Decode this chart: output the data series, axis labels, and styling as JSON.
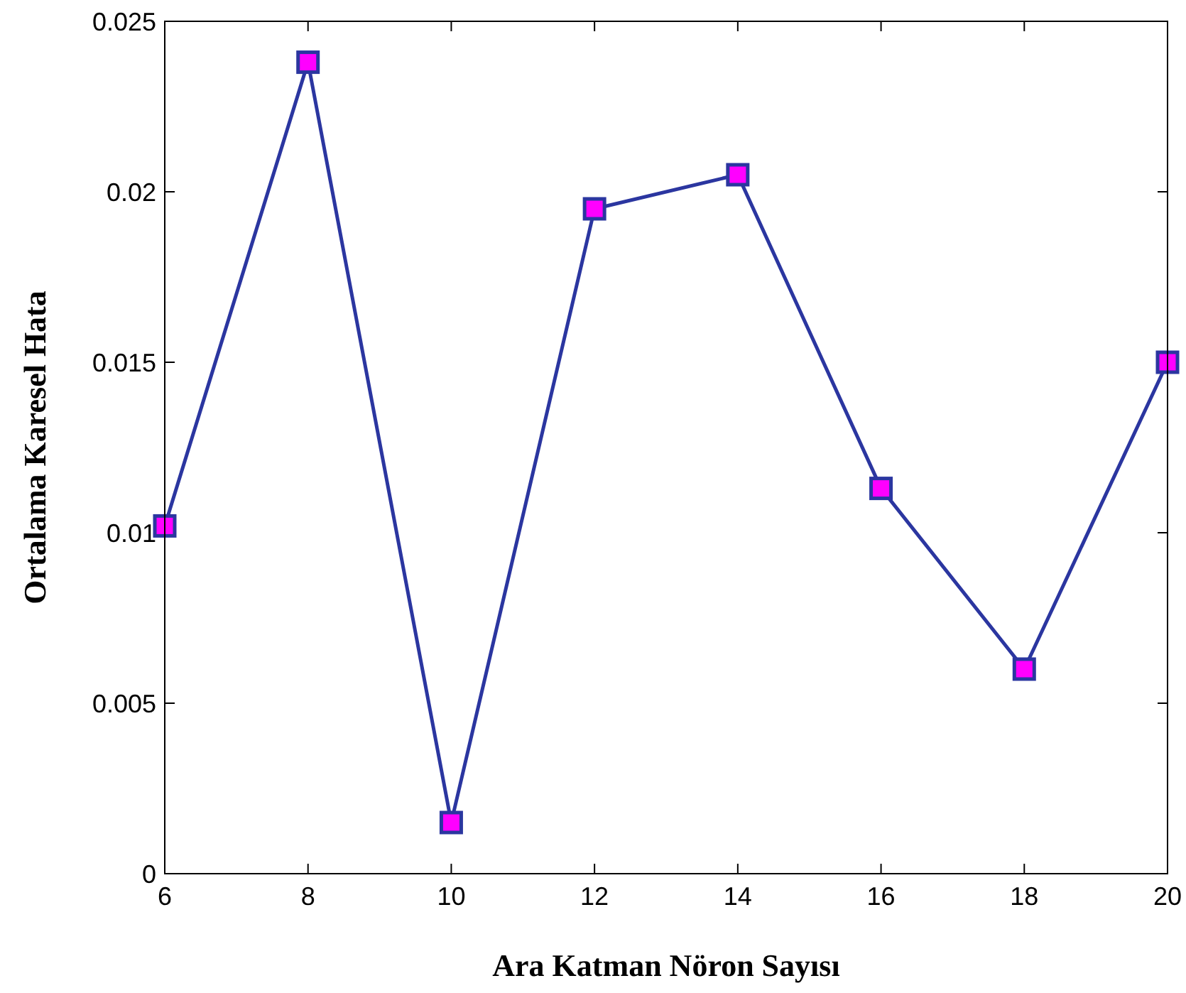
{
  "chart_data": {
    "type": "line",
    "xlabel": "Ara Katman Nöron Sayısı",
    "ylabel": "Ortalama Karesel Hata",
    "x": [
      6,
      8,
      10,
      12,
      14,
      16,
      18,
      20
    ],
    "series": [
      {
        "color": "#2b36a0",
        "values": [
          0.0102,
          0.0238,
          0.0015,
          0.0195,
          0.0205,
          0.0113,
          0.006,
          0.015
        ]
      }
    ],
    "marker": "square",
    "line_style": "solid",
    "grid": false,
    "xlim": [
      6,
      20
    ],
    "xticks": [
      6,
      8,
      10,
      12,
      14,
      16,
      18,
      20
    ],
    "ylim": [
      0,
      0.025
    ],
    "yticks": [
      0,
      0.005,
      0.01,
      0.015,
      0.02,
      0.025
    ]
  }
}
